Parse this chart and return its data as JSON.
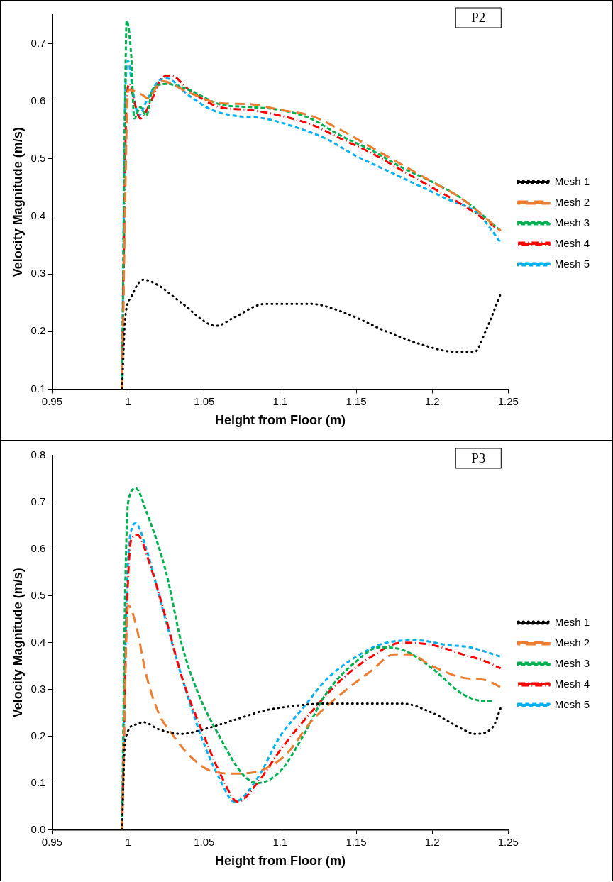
{
  "chart_data": [
    {
      "type": "line",
      "title": "P2",
      "xlabel": "Height from Floor (m)",
      "ylabel": "Velocity Magnitude (m/s)",
      "xlim": [
        0.95,
        1.25
      ],
      "xticks": [
        0.95,
        1,
        1.05,
        1.1,
        1.15,
        1.2,
        1.25
      ],
      "ylim": [
        0.1,
        0.75
      ],
      "yticks": [
        0.1,
        0.2,
        0.3,
        0.4,
        0.5,
        0.6,
        0.7
      ],
      "grid": false,
      "legend": "right",
      "series": [
        {
          "name": "Mesh 1",
          "color": "#000000",
          "line_style": "dotted",
          "x": [
            0.996,
            0.998,
            1.002,
            1.01,
            1.02,
            1.035,
            1.058,
            1.07,
            1.09,
            1.12,
            1.14,
            1.17,
            1.19,
            1.215,
            1.228,
            1.235,
            1.245
          ],
          "values": [
            0.1,
            0.22,
            0.26,
            0.29,
            0.28,
            0.25,
            0.21,
            0.225,
            0.248,
            0.248,
            0.235,
            0.2,
            0.18,
            0.165,
            0.165,
            0.2,
            0.265
          ]
        },
        {
          "name": "Mesh 2",
          "color": "#ed7d31",
          "line_style": "dashed",
          "x": [
            0.996,
            0.999,
            1,
            1.01,
            1.013,
            1.022,
            1.04,
            1.06,
            1.08,
            1.1,
            1.12,
            1.14,
            1.16,
            1.18,
            1.2,
            1.22,
            1.245
          ],
          "values": [
            0.1,
            0.55,
            0.62,
            0.61,
            0.605,
            0.635,
            0.615,
            0.597,
            0.595,
            0.585,
            0.575,
            0.55,
            0.52,
            0.49,
            0.46,
            0.43,
            0.375
          ]
        },
        {
          "name": "Mesh 3",
          "color": "#00b050",
          "line_style": "dashed",
          "x": [
            0.996,
            0.998,
            0.999,
            1.002,
            1.004,
            1.008,
            1.012,
            1.016,
            1.025,
            1.04,
            1.06,
            1.08,
            1.1,
            1.12,
            1.14,
            1.16,
            1.18,
            1.2,
            1.22,
            1.245
          ],
          "values": [
            0.1,
            0.6,
            0.74,
            0.68,
            0.57,
            0.59,
            0.575,
            0.62,
            0.63,
            0.62,
            0.595,
            0.59,
            0.585,
            0.57,
            0.54,
            0.515,
            0.485,
            0.46,
            0.43,
            0.375
          ]
        },
        {
          "name": "Mesh 4",
          "color": "#ff0000",
          "line_style": "dashed",
          "x": [
            0.996,
            0.999,
            1.001,
            1.004,
            1.008,
            1.015,
            1.022,
            1.028,
            1.04,
            1.06,
            1.08,
            1.1,
            1.12,
            1.14,
            1.16,
            1.18,
            1.2,
            1.22,
            1.245
          ],
          "values": [
            0.1,
            0.6,
            0.63,
            0.6,
            0.57,
            0.6,
            0.64,
            0.645,
            0.62,
            0.59,
            0.585,
            0.575,
            0.56,
            0.535,
            0.51,
            0.48,
            0.45,
            0.42,
            0.375
          ]
        },
        {
          "name": "Mesh 5",
          "color": "#00b0f0",
          "line_style": "dashed",
          "x": [
            0.996,
            0.998,
            1,
            1.003,
            1.007,
            1.012,
            1.02,
            1.025,
            1.04,
            1.055,
            1.07,
            1.09,
            1.11,
            1.13,
            1.15,
            1.17,
            1.19,
            1.21,
            1.23,
            1.245
          ],
          "values": [
            0.1,
            0.6,
            0.67,
            0.62,
            0.575,
            0.6,
            0.635,
            0.64,
            0.61,
            0.585,
            0.575,
            0.57,
            0.555,
            0.535,
            0.505,
            0.48,
            0.455,
            0.43,
            0.405,
            0.355
          ]
        }
      ]
    },
    {
      "type": "line",
      "title": "P3",
      "xlabel": "Height from Floor (m)",
      "ylabel": "Velocity Magnitude (m/s)",
      "xlim": [
        0.95,
        1.25
      ],
      "xticks": [
        0.95,
        1,
        1.05,
        1.1,
        1.15,
        1.2,
        1.25
      ],
      "ylim": [
        0,
        0.8
      ],
      "yticks": [
        {
          "value": 0,
          "label": "0.0"
        },
        0.1,
        0.2,
        0.3,
        0.4,
        0.5,
        0.6,
        0.7,
        0.8
      ],
      "grid": false,
      "legend": "right",
      "series": [
        {
          "name": "Mesh 1",
          "color": "#000000",
          "line_style": "dotted",
          "x": [
            0.996,
            0.998,
            1.005,
            1.01,
            1.02,
            1.035,
            1.05,
            1.07,
            1.09,
            1.11,
            1.13,
            1.16,
            1.18,
            1.2,
            1.22,
            1.228,
            1.24,
            1.245
          ],
          "values": [
            0,
            0.19,
            0.225,
            0.23,
            0.215,
            0.205,
            0.215,
            0.235,
            0.255,
            0.265,
            0.27,
            0.27,
            0.27,
            0.25,
            0.215,
            0.205,
            0.22,
            0.26
          ]
        },
        {
          "name": "Mesh 2",
          "color": "#ed7d31",
          "line_style": "dashed",
          "x": [
            0.996,
            1,
            1.005,
            1.012,
            1.02,
            1.03,
            1.04,
            1.055,
            1.07,
            1.09,
            1.105,
            1.12,
            1.14,
            1.16,
            1.175,
            1.185,
            1.2,
            1.22,
            1.235,
            1.245
          ],
          "values": [
            0,
            0.48,
            0.44,
            0.33,
            0.25,
            0.2,
            0.16,
            0.125,
            0.12,
            0.13,
            0.165,
            0.23,
            0.29,
            0.34,
            0.375,
            0.375,
            0.35,
            0.325,
            0.32,
            0.305
          ]
        },
        {
          "name": "Mesh 3",
          "color": "#00b050",
          "line_style": "dashed",
          "x": [
            0.996,
            0.998,
            1,
            1.005,
            1.012,
            1.025,
            1.035,
            1.045,
            1.06,
            1.075,
            1.085,
            1.1,
            1.115,
            1.13,
            1.15,
            1.165,
            1.18,
            1.2,
            1.22,
            1.235,
            1.24
          ],
          "values": [
            0,
            0.5,
            0.7,
            0.73,
            0.68,
            0.55,
            0.4,
            0.3,
            0.2,
            0.12,
            0.1,
            0.125,
            0.2,
            0.29,
            0.36,
            0.39,
            0.385,
            0.345,
            0.29,
            0.275,
            0.275
          ]
        },
        {
          "name": "Mesh 4",
          "color": "#ff0000",
          "line_style": "dashed",
          "x": [
            0.996,
            0.999,
            1.002,
            1.006,
            1.015,
            1.025,
            1.035,
            1.05,
            1.062,
            1.072,
            1.085,
            1.1,
            1.12,
            1.14,
            1.16,
            1.18,
            1.2,
            1.22,
            1.235,
            1.245
          ],
          "values": [
            0,
            0.45,
            0.62,
            0.63,
            0.56,
            0.45,
            0.33,
            0.2,
            0.11,
            0.06,
            0.1,
            0.17,
            0.25,
            0.32,
            0.37,
            0.4,
            0.395,
            0.375,
            0.36,
            0.345
          ]
        },
        {
          "name": "Mesh 5",
          "color": "#00b0f0",
          "line_style": "dashed",
          "x": [
            0.996,
            0.999,
            1.002,
            1.005,
            1.012,
            1.022,
            1.035,
            1.048,
            1.06,
            1.07,
            1.085,
            1.1,
            1.115,
            1.13,
            1.15,
            1.17,
            1.19,
            1.21,
            1.225,
            1.245
          ],
          "values": [
            0,
            0.5,
            0.64,
            0.655,
            0.6,
            0.48,
            0.33,
            0.2,
            0.11,
            0.06,
            0.11,
            0.2,
            0.26,
            0.32,
            0.37,
            0.4,
            0.405,
            0.395,
            0.39,
            0.37
          ]
        }
      ]
    }
  ]
}
